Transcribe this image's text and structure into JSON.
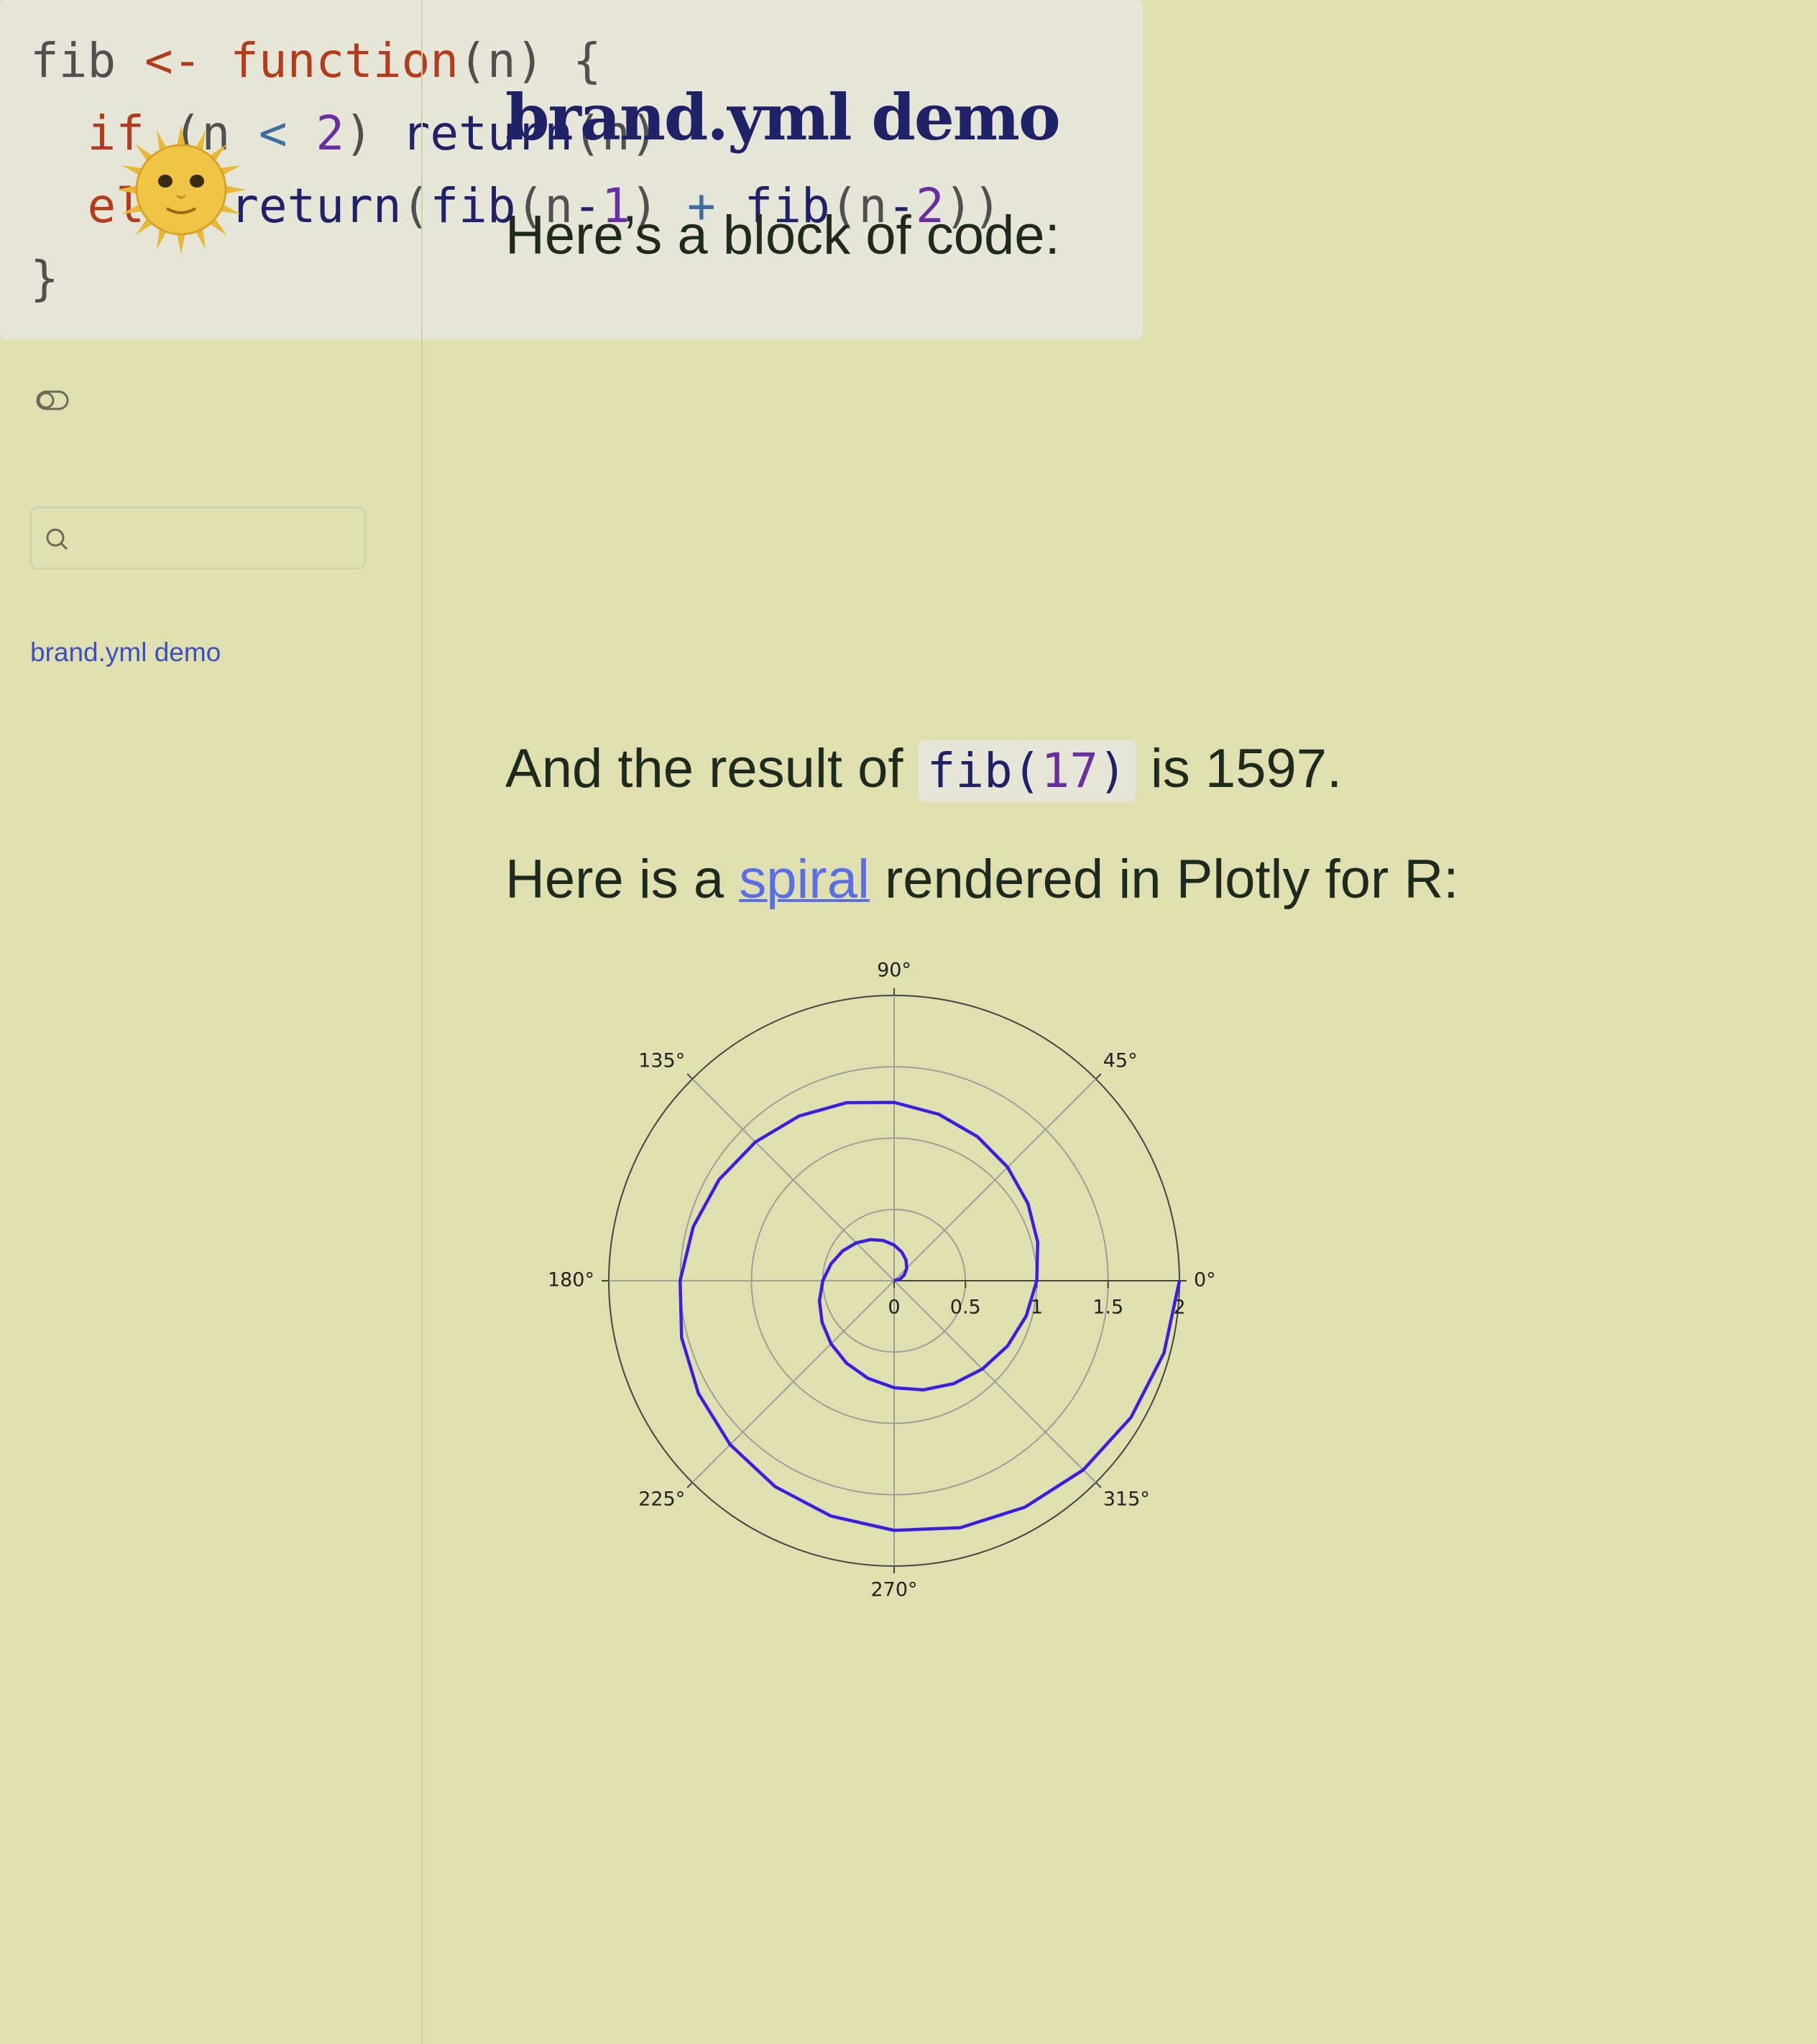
{
  "sidebar": {
    "nav_link": "brand.yml demo"
  },
  "title": "brand.yml demo",
  "intro": "Here’s a block of code:",
  "code": {
    "lines": [
      [
        {
          "text": "fib ",
          "color": "#505050"
        },
        {
          "text": "<-",
          "color": "#b23c1e"
        },
        {
          "text": " ",
          "color": "#505050"
        },
        {
          "text": "function",
          "color": "#b23c1e"
        },
        {
          "text": "(n) {",
          "color": "#505050"
        }
      ],
      [
        {
          "text": "  ",
          "color": "#505050"
        },
        {
          "text": "if",
          "color": "#b23c1e"
        },
        {
          "text": " (n ",
          "color": "#505050"
        },
        {
          "text": "<",
          "color": "#3e6ea0"
        },
        {
          "text": " ",
          "color": "#505050"
        },
        {
          "text": "2",
          "color": "#6a2f9e"
        },
        {
          "text": ") ",
          "color": "#505050"
        },
        {
          "text": "return",
          "color": "#1f2266"
        },
        {
          "text": "(n)",
          "color": "#505050"
        }
      ],
      [
        {
          "text": "  ",
          "color": "#505050"
        },
        {
          "text": "else",
          "color": "#b23c1e"
        },
        {
          "text": " ",
          "color": "#505050"
        },
        {
          "text": "return",
          "color": "#1f2266"
        },
        {
          "text": "(",
          "color": "#505050"
        },
        {
          "text": "fib",
          "color": "#1f2266"
        },
        {
          "text": "(n",
          "color": "#505050"
        },
        {
          "text": "-",
          "color": "#1f2266"
        },
        {
          "text": "1",
          "color": "#6a2f9e"
        },
        {
          "text": ") ",
          "color": "#505050"
        },
        {
          "text": "+",
          "color": "#3e6ea0"
        },
        {
          "text": " ",
          "color": "#505050"
        },
        {
          "text": "fib",
          "color": "#1f2266"
        },
        {
          "text": "(n",
          "color": "#505050"
        },
        {
          "text": "-",
          "color": "#1f2266"
        },
        {
          "text": "2",
          "color": "#6a2f9e"
        },
        {
          "text": "))",
          "color": "#505050"
        }
      ],
      [
        {
          "text": "}",
          "color": "#505050"
        }
      ]
    ]
  },
  "result": {
    "before": "And the result of ",
    "code": [
      {
        "text": "fib(",
        "color": "#1f2266"
      },
      {
        "text": "17",
        "color": "#6a2f9e"
      },
      {
        "text": ")",
        "color": "#1f2266"
      }
    ],
    "after": " is 1597."
  },
  "spiral_text": {
    "before": "Here is a ",
    "link": "spiral",
    "after": " rendered in Plotly for R:"
  },
  "chart_data": {
    "type": "polar",
    "color": "#3a1fe0",
    "theta": [
      0,
      15,
      30,
      45,
      60,
      75,
      90,
      105,
      120,
      135,
      150,
      165,
      180,
      195,
      210,
      225,
      240,
      255,
      270,
      285,
      300,
      315,
      330,
      345,
      360,
      375,
      390,
      405,
      420,
      435,
      450,
      465,
      480,
      495,
      510,
      525,
      540,
      555,
      570,
      585,
      600,
      615,
      630,
      645,
      660,
      675,
      690,
      705,
      720
    ],
    "r": [
      0,
      0.042,
      0.083,
      0.125,
      0.167,
      0.208,
      0.25,
      0.292,
      0.333,
      0.375,
      0.417,
      0.458,
      0.5,
      0.542,
      0.583,
      0.625,
      0.667,
      0.708,
      0.75,
      0.792,
      0.833,
      0.875,
      0.917,
      0.958,
      1,
      1.042,
      1.083,
      1.125,
      1.167,
      1.208,
      1.25,
      1.292,
      1.333,
      1.375,
      1.417,
      1.458,
      1.5,
      1.542,
      1.583,
      1.625,
      1.667,
      1.708,
      1.75,
      1.792,
      1.833,
      1.875,
      1.917,
      1.958,
      2
    ],
    "rlim": [
      0,
      2
    ],
    "rticks": [
      0,
      0.5,
      1,
      1.5,
      2
    ],
    "thetaticks": [
      {
        "value": 0,
        "label": "0°"
      },
      {
        "value": 45,
        "label": "45°"
      },
      {
        "value": 90,
        "label": "90°"
      },
      {
        "value": 135,
        "label": "135°"
      },
      {
        "value": 180,
        "label": "180°"
      },
      {
        "value": 225,
        "label": "225°"
      },
      {
        "value": 270,
        "label": "270°"
      },
      {
        "value": 315,
        "label": "315°"
      }
    ],
    "grid": true
  }
}
